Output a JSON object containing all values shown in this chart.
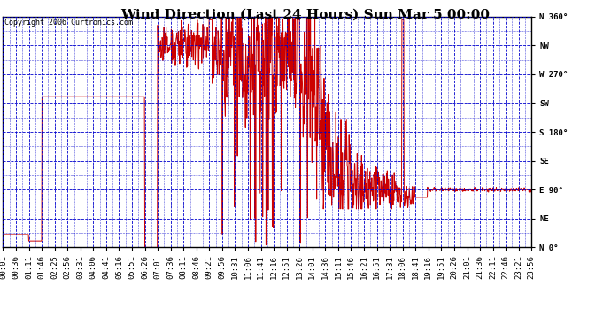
{
  "title": "Wind Direction (Last 24 Hours) Sun Mar 5 00:00",
  "copyright": "Copyright 2006 Curtronics.com",
  "ylabel_right": [
    "N 360°",
    "NW",
    "W 270°",
    "SW",
    "S 180°",
    "SE",
    "E 90°",
    "NE",
    "N 0°"
  ],
  "ylabel_right_vals": [
    360,
    315,
    270,
    225,
    180,
    135,
    90,
    45,
    0
  ],
  "ylim": [
    0,
    360
  ],
  "line_color": "#cc0000",
  "grid_color": "#0000cc",
  "bg_color": "#ffffff",
  "plot_bg_color": "#ffffff",
  "border_color": "#000000",
  "title_fontsize": 11,
  "tick_fontsize": 6.5,
  "copyright_fontsize": 6,
  "xtick_labels": [
    "00:01",
    "00:36",
    "01:11",
    "01:46",
    "02:25",
    "02:56",
    "03:31",
    "04:06",
    "04:41",
    "05:16",
    "05:51",
    "06:26",
    "07:01",
    "07:36",
    "08:11",
    "08:46",
    "09:21",
    "09:56",
    "10:31",
    "11:06",
    "11:41",
    "12:16",
    "12:51",
    "13:26",
    "14:01",
    "14:36",
    "15:11",
    "15:46",
    "16:21",
    "16:51",
    "17:31",
    "18:06",
    "18:41",
    "19:16",
    "19:51",
    "20:26",
    "21:01",
    "21:36",
    "22:11",
    "22:46",
    "23:21",
    "23:56"
  ]
}
